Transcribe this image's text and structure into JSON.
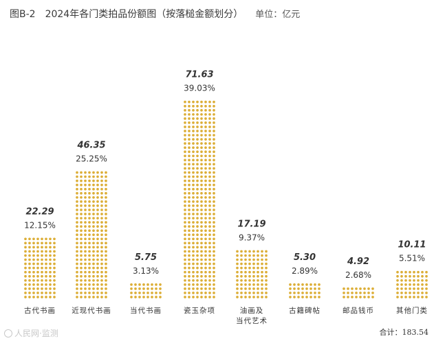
{
  "figure": {
    "label": "图B-2",
    "title": "2024年各门类拍品份额图（按落槌金额划分）",
    "unit": "单位：亿元",
    "total_text": "合计：183.54",
    "watermark": "人民网·监测"
  },
  "chart_data": {
    "type": "bar",
    "title": "2024年各门类拍品份额图（按落槌金额划分）",
    "unit": "亿元",
    "categories": [
      "古代书画",
      "近现代书画",
      "当代书画",
      "瓷玉杂项",
      "油画及\n当代艺术",
      "古籍碑帖",
      "邮品钱币",
      "其他门类"
    ],
    "values": [
      22.29,
      46.35,
      5.75,
      71.63,
      17.19,
      5.3,
      4.92,
      10.11
    ],
    "value_labels": [
      "22.29",
      "46.35",
      "5.75",
      "71.63",
      "17.19",
      "5.30",
      "4.92",
      "10.11"
    ],
    "percent_labels": [
      "12.15%",
      "25.25%",
      "3.13%",
      "39.03%",
      "9.37%",
      "2.89%",
      "2.68%",
      "5.51%"
    ],
    "total": 183.54,
    "colors": {
      "dot": "#dcae37",
      "text": "#333333"
    }
  }
}
